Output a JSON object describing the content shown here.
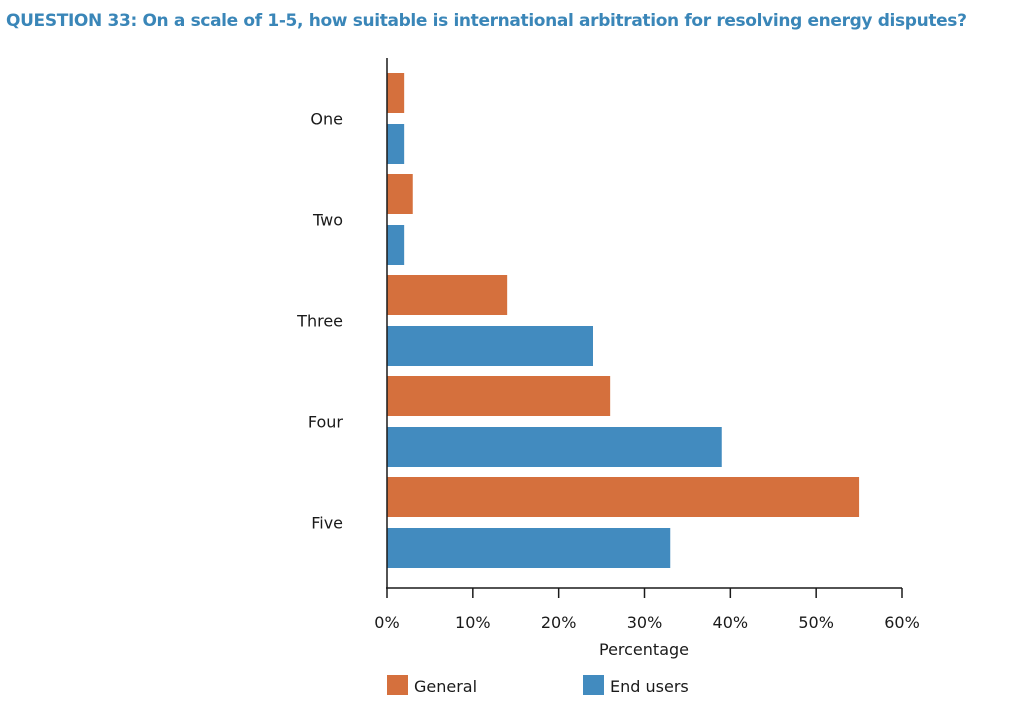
{
  "chart_data": {
    "type": "bar",
    "orientation": "horizontal",
    "title": "QUESTION 33: On a scale of 1-5, how suitable is international arbitration for resolving energy disputes?",
    "xlabel": "Percentage",
    "ylabel": "",
    "categories": [
      "One",
      "Two",
      "Three",
      "Four",
      "Five"
    ],
    "series": [
      {
        "name": "General",
        "color": "#d5703d",
        "values": [
          2,
          3,
          14,
          26,
          55
        ]
      },
      {
        "name": "End users",
        "color": "#428bbf",
        "values": [
          2,
          2,
          24,
          39,
          33
        ]
      }
    ],
    "xlim": [
      0,
      60
    ],
    "xticks": [
      0,
      10,
      20,
      30,
      40,
      50,
      60
    ],
    "xtick_labels": [
      "0%",
      "10%",
      "20%",
      "30%",
      "40%",
      "50%",
      "60%"
    ],
    "grid": false,
    "legend": "bottom"
  }
}
